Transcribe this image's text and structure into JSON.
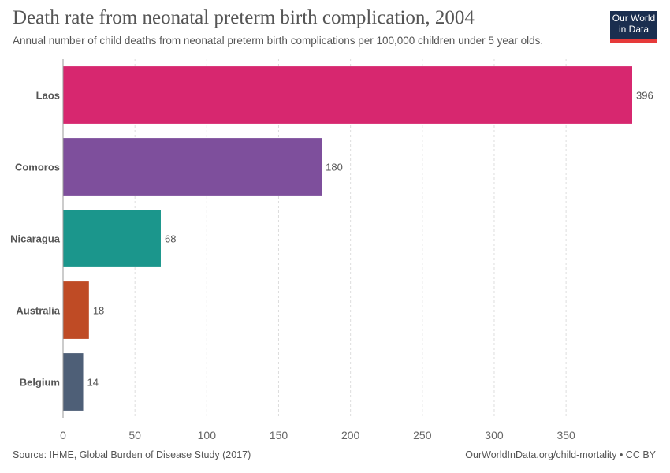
{
  "header": {
    "title": "Death rate from neonatal preterm birth complication, 2004",
    "subtitle": "Annual number of child deaths from neonatal preterm birth complications per 100,000 children under 5 year olds."
  },
  "logo": {
    "line1": "Our World",
    "line2": "in Data",
    "colors": {
      "background": "#1a2e4f",
      "accent": "#e63a3a"
    }
  },
  "footer": {
    "source": "Source: IHME, Global Burden of Disease Study (2017)",
    "credit": "OurWorldInData.org/child-mortality • CC BY"
  },
  "chart_data": {
    "type": "bar",
    "orientation": "horizontal",
    "categories": [
      "Laos",
      "Comoros",
      "Nicaragua",
      "Australia",
      "Belgium"
    ],
    "values": [
      396,
      180,
      68,
      18,
      14
    ],
    "value_labels": [
      "396",
      "180",
      "68",
      "18",
      "14"
    ],
    "colors": [
      "#d7276f",
      "#7e4f9c",
      "#1b968c",
      "#bf4b25",
      "#4e5f77"
    ],
    "xlim": [
      0,
      396
    ],
    "xticks": [
      0,
      50,
      100,
      150,
      200,
      250,
      300,
      350
    ],
    "grid": true,
    "title": "Death rate from neonatal preterm birth complication, 2004",
    "xlabel": "",
    "ylabel": ""
  }
}
